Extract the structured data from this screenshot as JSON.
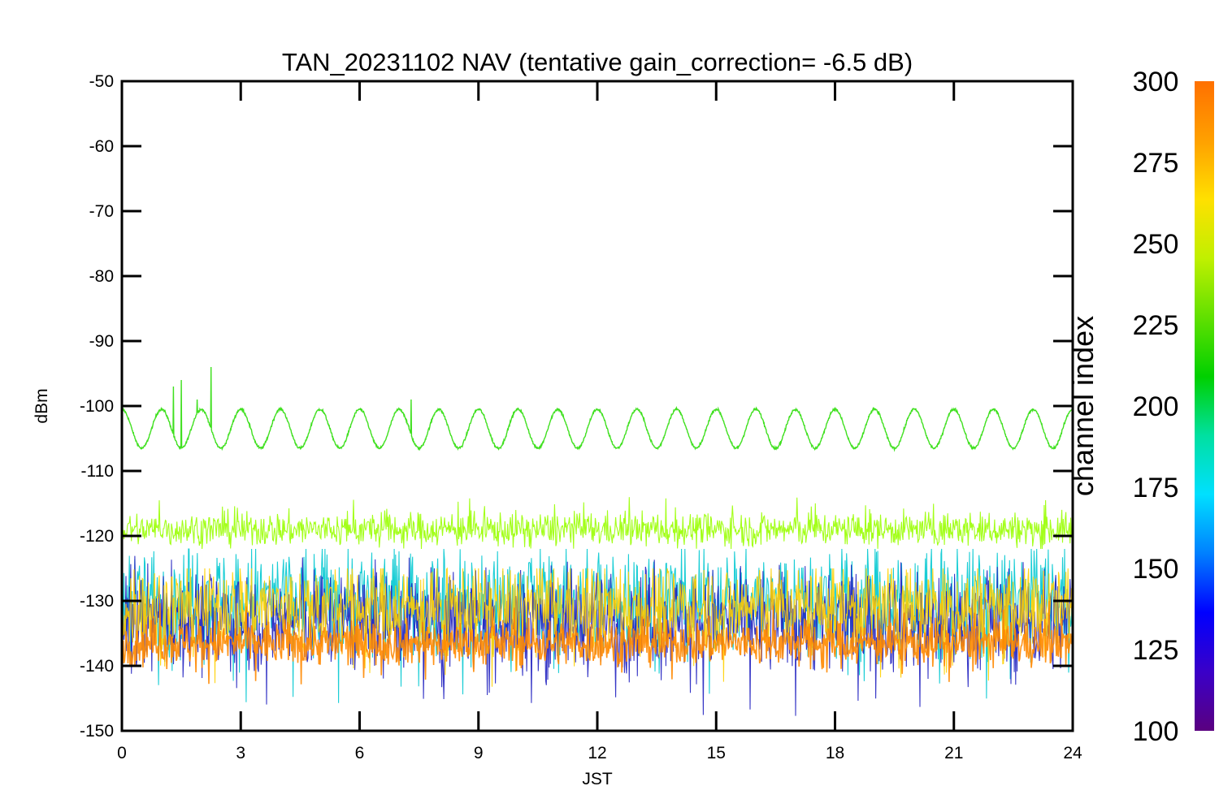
{
  "chart_data": {
    "type": "line",
    "title": "TAN_20231102 NAV (tentative gain_correction= -6.5 dB)",
    "xlabel": "JST",
    "ylabel": "dBm",
    "xlim": [
      0,
      24
    ],
    "ylim": [
      -150,
      -50
    ],
    "x_ticks": [
      0,
      3,
      6,
      9,
      12,
      15,
      18,
      21,
      24
    ],
    "y_ticks": [
      -50,
      -60,
      -70,
      -80,
      -90,
      -100,
      -110,
      -120,
      -130,
      -140,
      -150
    ],
    "grid": false,
    "colorbar": {
      "label": "channel index",
      "range": [
        100,
        300
      ],
      "ticks": [
        300,
        275,
        250,
        225,
        200,
        175,
        150,
        125,
        100
      ],
      "colormap": "rainbow",
      "colors": [
        "#5a0080",
        "#3a00c8",
        "#0000ff",
        "#0080ff",
        "#00e0ff",
        "#00e0a0",
        "#00d000",
        "#60e000",
        "#c0f000",
        "#ffe000",
        "#ffa000",
        "#ff7000"
      ]
    },
    "series": [
      {
        "channel_index": 245,
        "color": "#40e020",
        "description_values": {
          "type": "periodic",
          "center_dBm": -103.5,
          "amplitude_dBm": 3,
          "period_hours": 1.0,
          "spikes": [
            {
              "x": 1.3,
              "y": -97
            },
            {
              "x": 1.5,
              "y": -96
            },
            {
              "x": 1.9,
              "y": -99
            },
            {
              "x": 2.25,
              "y": -94
            },
            {
              "x": 7.3,
              "y": -99
            }
          ]
        }
      },
      {
        "channel_index": 260,
        "color": "#99ff00",
        "description_values": {
          "type": "noise-band",
          "center_dBm": -119,
          "low_dBm": -122,
          "high_dBm": -114
        }
      },
      {
        "channel_index": 175,
        "color": "#00c8d0",
        "description_values": {
          "type": "noise-band",
          "center_dBm": -130,
          "low_dBm": -146,
          "high_dBm": -122
        }
      },
      {
        "channel_index": 140,
        "color": "#2020c0",
        "description_values": {
          "type": "noise-band",
          "center_dBm": -133,
          "low_dBm": -148,
          "high_dBm": -123
        }
      },
      {
        "channel_index": 270,
        "color": "#ffd000",
        "description_values": {
          "type": "noise-band",
          "center_dBm": -131,
          "low_dBm": -144,
          "high_dBm": -125
        }
      },
      {
        "channel_index": 290,
        "color": "#ff8800",
        "description_values": {
          "type": "noise-band",
          "center_dBm": -136.5,
          "low_dBm": -143,
          "high_dBm": -130
        }
      }
    ]
  }
}
